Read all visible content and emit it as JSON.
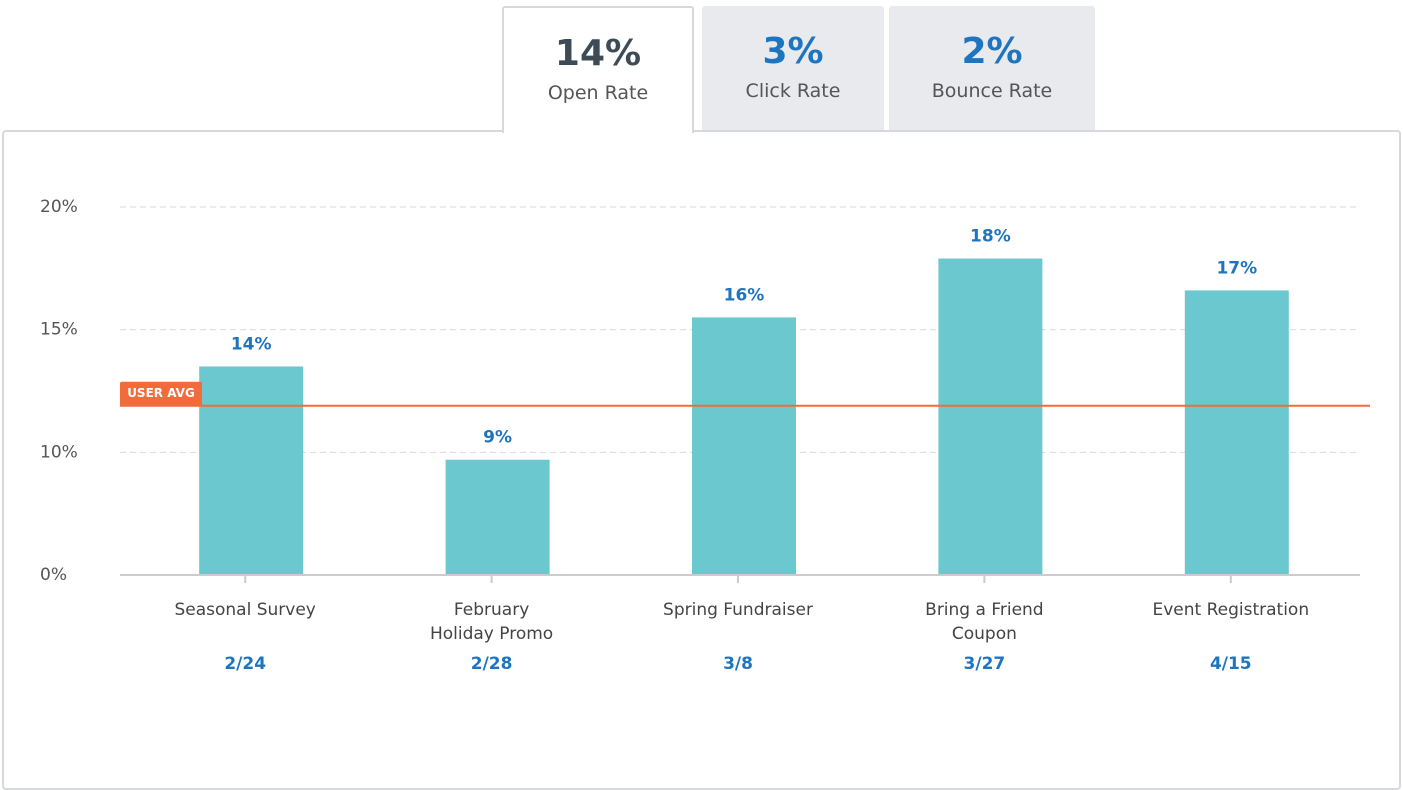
{
  "tabs": [
    {
      "value": "14%",
      "label": "Open Rate",
      "active": true
    },
    {
      "value": "3%",
      "label": "Click Rate",
      "active": false
    },
    {
      "value": "2%",
      "label": "Bounce Rate",
      "active": false
    }
  ],
  "chart_data": {
    "type": "bar",
    "categories": [
      "Seasonal Survey",
      "February\nHoliday Promo",
      "Spring Fundraiser",
      "Bring a Friend\nCoupon",
      "Event Registration"
    ],
    "dates": [
      "2/24",
      "2/28",
      "3/8",
      "3/27",
      "4/15"
    ],
    "values": [
      13.5,
      9.4,
      15.5,
      17.9,
      16.6
    ],
    "value_labels": [
      "14%",
      "9%",
      "16%",
      "18%",
      "17%"
    ],
    "color": "#6cc8cf",
    "ylim": [
      0,
      20
    ],
    "yticks": [
      {
        "value": 0,
        "label": "0%"
      },
      {
        "value": 10,
        "label": "10%"
      },
      {
        "value": 15,
        "label": "15%"
      },
      {
        "value": 20,
        "label": "20%"
      }
    ],
    "grid": true,
    "reference_line": {
      "label": "USER AVG",
      "value": 11.9,
      "color": "#f26b3a"
    }
  }
}
